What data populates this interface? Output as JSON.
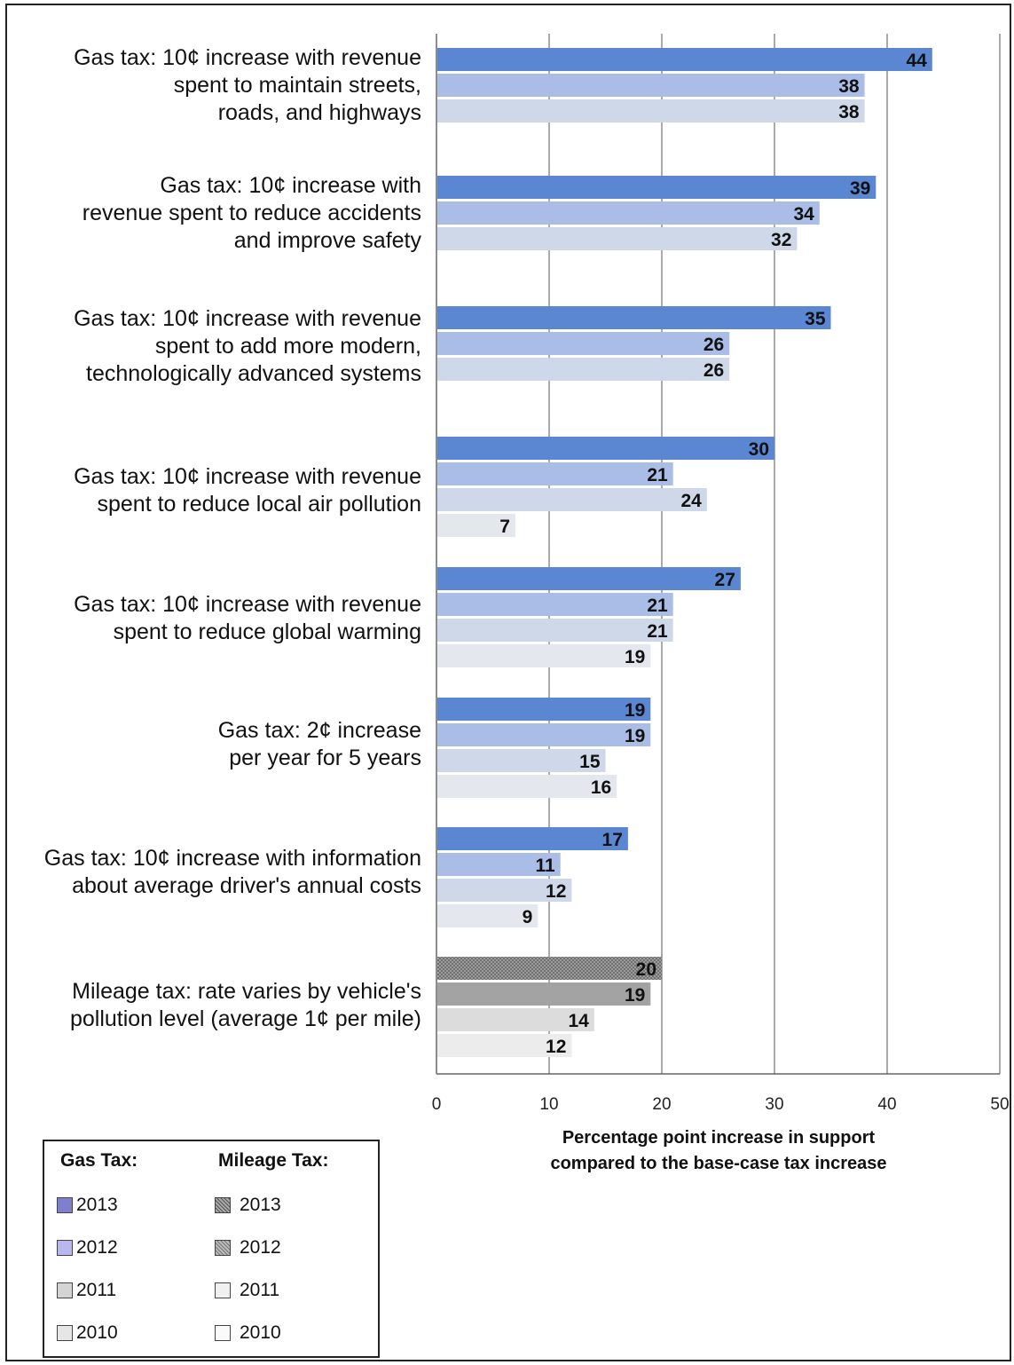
{
  "chart_data": {
    "type": "bar",
    "orientation": "horizontal",
    "categories": [
      "Gas tax: 10¢ increase with revenue\nspent to maintain streets,\nroads, and highways",
      "Gas tax: 10¢ increase with\nrevenue spent to reduce accidents\nand improve safety",
      "Gas tax: 10¢ increase with revenue\nspent to add more modern,\ntechnologically advanced systems",
      "Gas tax: 10¢ increase with revenue\nspent to reduce local air pollution",
      "Gas tax: 10¢ increase with revenue\nspent to reduce global warming",
      "Gas tax: 2¢ increase\nper year for 5 years",
      "Gas tax: 10¢ increase with information\nabout average driver's annual costs",
      "Mileage tax: rate varies by vehicle's\npollution level (average 1¢ per mile)"
    ],
    "series": [
      {
        "name": "2013",
        "values": [
          44,
          39,
          35,
          30,
          27,
          19,
          17,
          20
        ]
      },
      {
        "name": "2012",
        "values": [
          38,
          34,
          26,
          21,
          21,
          19,
          11,
          19
        ]
      },
      {
        "name": "2011",
        "values": [
          38,
          32,
          26,
          24,
          21,
          15,
          12,
          14
        ]
      },
      {
        "name": "2010",
        "values": [
          null,
          null,
          null,
          7,
          19,
          16,
          9,
          12
        ]
      }
    ],
    "xlabel": "Percentage point increase in support\ncompared to the base-case tax increase",
    "xlim": [
      0,
      50
    ],
    "xticks": [
      "0",
      "10",
      "20",
      "30",
      "40",
      "50"
    ],
    "grid": true,
    "colors": {
      "gas_2013": "#4f7fcf",
      "gas_2012": "#9bb3e3",
      "gas_2011": "#c9d3e6",
      "gas_2010": "#e3e5ea",
      "mileage_2013": "#8a8a8a",
      "mileage_2012": "#a8a8a8",
      "mileage_2011": "#dedede",
      "mileage_2010": "#ececec"
    }
  },
  "legend": {
    "gas_title": "Gas Tax:",
    "mileage_title": "Mileage Tax:",
    "gas_items": [
      "2013",
      "2012",
      "2011",
      "2010"
    ],
    "mileage_items": [
      "2013",
      "2012",
      "2011",
      "2010"
    ]
  }
}
